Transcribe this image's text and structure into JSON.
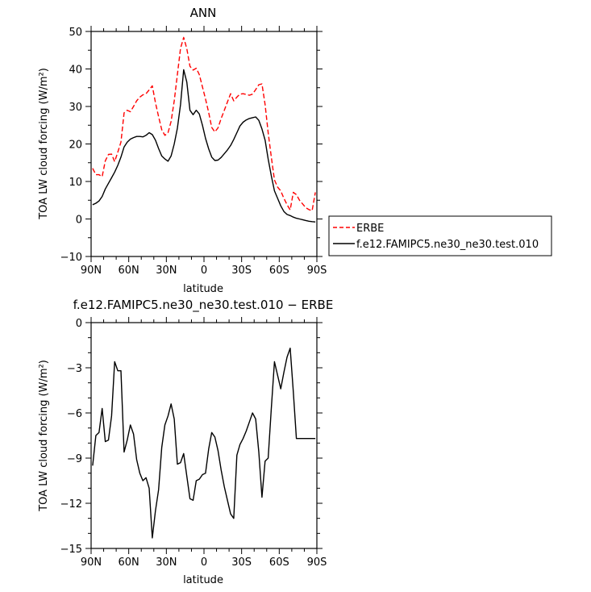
{
  "chart_data": [
    {
      "type": "line",
      "title": "ANN",
      "xlabel": "latitude",
      "ylabel": "TOA LW cloud forcing (W/m²)",
      "xlim": [
        90,
        -90
      ],
      "ylim": [
        -10,
        50
      ],
      "x_tick_values": [
        90,
        60,
        30,
        0,
        -30,
        -60,
        -90
      ],
      "x_tick_labels": [
        "90N",
        "60N",
        "30N",
        "0",
        "30S",
        "60S",
        "90S"
      ],
      "y_tick_values": [
        -10,
        0,
        10,
        20,
        30,
        40,
        50
      ],
      "y_tick_labels": [
        "−10",
        "0",
        "10",
        "20",
        "30",
        "40",
        "50"
      ],
      "legend_position": "right",
      "series": [
        {
          "name": "ERBE",
          "color": "#ff0000",
          "style": "dashed",
          "x": [
            88.8,
            86.2,
            83.7,
            81.2,
            78.7,
            76.2,
            73.7,
            71.2,
            68.7,
            66.2,
            63.7,
            61.2,
            58.7,
            56.2,
            53.7,
            51.2,
            48.7,
            46.2,
            43.7,
            41.2,
            38.7,
            36.2,
            33.7,
            31.2,
            28.7,
            26.2,
            23.7,
            21.2,
            18.7,
            16.2,
            13.7,
            11.2,
            8.7,
            6.2,
            3.7,
            1.2,
            -1.2,
            -3.7,
            -6.2,
            -8.7,
            -11.2,
            -13.7,
            -16.2,
            -18.7,
            -21.2,
            -23.7,
            -26.2,
            -28.7,
            -31.2,
            -33.7,
            -36.2,
            -38.7,
            -41.2,
            -43.7,
            -46.2,
            -48.7,
            -51.2,
            -53.7,
            -56.2,
            -58.7,
            -61.2,
            -63.7,
            -66.2,
            -68.7,
            -71.2,
            -73.7,
            -76.2,
            -78.7,
            -81.2,
            -83.7,
            -86.2,
            -88.8
          ],
          "y": [
            13.5,
            11.8,
            11.8,
            11.3,
            15.5,
            17.2,
            17.3,
            15.3,
            17.8,
            20.5,
            28.3,
            29.0,
            28.6,
            30.0,
            31.5,
            32.5,
            33.1,
            33.4,
            34.4,
            35.5,
            31.0,
            27.3,
            23.8,
            22.3,
            23.0,
            26.0,
            31.5,
            38.5,
            45.5,
            48.4,
            45.4,
            40.7,
            39.7,
            40.2,
            38.5,
            35.2,
            32.0,
            28.4,
            24.4,
            23.2,
            24.3,
            26.8,
            29.0,
            31.2,
            33.4,
            31.5,
            32.5,
            33.3,
            33.4,
            33.2,
            33.0,
            33.3,
            34.5,
            35.8,
            36.0,
            30.5,
            23.0,
            16.5,
            10.4,
            8.5,
            7.5,
            5.5,
            3.8,
            2.4,
            7.1,
            6.5,
            5.0,
            4.0,
            3.0,
            2.5,
            2.2,
            7.1
          ]
        },
        {
          "name": "f.e12.FAMIPC5.ne30_ne30.test.010",
          "color": "#000000",
          "style": "solid",
          "x": [
            88.8,
            86.2,
            83.7,
            81.2,
            78.7,
            76.2,
            73.7,
            71.2,
            68.7,
            66.2,
            63.7,
            61.2,
            58.7,
            56.2,
            53.7,
            51.2,
            48.7,
            46.2,
            43.7,
            41.2,
            38.7,
            36.2,
            33.7,
            31.2,
            28.7,
            26.2,
            23.7,
            21.2,
            18.7,
            16.2,
            13.7,
            11.2,
            8.7,
            6.2,
            3.7,
            1.2,
            -1.2,
            -3.7,
            -6.2,
            -8.7,
            -11.2,
            -13.7,
            -16.2,
            -18.7,
            -21.2,
            -23.7,
            -26.2,
            -28.7,
            -31.2,
            -33.7,
            -36.2,
            -38.7,
            -41.2,
            -43.7,
            -46.2,
            -48.7,
            -51.2,
            -53.7,
            -56.2,
            -58.7,
            -61.2,
            -63.7,
            -66.2,
            -68.7,
            -71.2,
            -73.7,
            -76.2,
            -78.7,
            -81.2,
            -83.7,
            -86.2,
            -88.8
          ],
          "y": [
            3.8,
            4.2,
            4.8,
            6.0,
            8.0,
            9.5,
            11.0,
            12.5,
            14.3,
            16.5,
            19.2,
            20.5,
            21.3,
            21.7,
            22.0,
            22.0,
            21.9,
            22.3,
            23.0,
            22.5,
            21.0,
            18.8,
            16.8,
            16.0,
            15.4,
            16.8,
            20.0,
            24.2,
            30.5,
            39.8,
            36.5,
            29.0,
            27.8,
            29.0,
            28.0,
            25.0,
            21.5,
            18.7,
            16.5,
            15.6,
            15.7,
            16.4,
            17.4,
            18.4,
            19.6,
            21.2,
            23.0,
            24.8,
            25.8,
            26.4,
            26.8,
            27.0,
            27.2,
            26.3,
            24.0,
            21.0,
            16.0,
            11.5,
            7.5,
            5.5,
            3.5,
            2.0,
            1.2,
            0.9,
            0.5,
            0.2,
            0.0,
            -0.2,
            -0.4,
            -0.6,
            -0.7,
            -0.8
          ]
        }
      ]
    },
    {
      "type": "line",
      "title": "f.e12.FAMIPC5.ne30_ne30.test.010 − ERBE",
      "xlabel": "latitude",
      "ylabel": "TOA LW cloud forcing (W/m²)",
      "xlim": [
        90,
        -90
      ],
      "ylim": [
        -15,
        0
      ],
      "x_tick_values": [
        90,
        60,
        30,
        0,
        -30,
        -60,
        -90
      ],
      "x_tick_labels": [
        "90N",
        "60N",
        "30N",
        "0",
        "30S",
        "60S",
        "90S"
      ],
      "y_tick_values": [
        -15,
        -12,
        -9,
        -6,
        -3,
        0
      ],
      "y_tick_labels": [
        "−15",
        "−12",
        "−9",
        "−6",
        "−3",
        "0"
      ],
      "series": [
        {
          "color": "#000000",
          "style": "solid",
          "x": [
            88.8,
            86.2,
            83.7,
            81.2,
            78.7,
            76.2,
            73.7,
            71.2,
            68.7,
            66.2,
            63.7,
            61.2,
            58.7,
            56.2,
            53.7,
            51.2,
            48.7,
            46.2,
            43.7,
            41.2,
            38.7,
            36.2,
            33.7,
            31.2,
            28.7,
            26.2,
            23.7,
            21.2,
            18.7,
            16.2,
            13.7,
            11.2,
            8.7,
            6.2,
            3.7,
            1.2,
            -1.2,
            -3.7,
            -6.2,
            -8.7,
            -11.2,
            -13.7,
            -16.2,
            -18.7,
            -21.2,
            -23.7,
            -26.2,
            -28.7,
            -31.2,
            -33.7,
            -36.2,
            -38.7,
            -41.2,
            -43.7,
            -46.2,
            -48.7,
            -51.2,
            -53.7,
            -56.2,
            -58.7,
            -61.2,
            -63.7,
            -66.2,
            -68.7,
            -71.2,
            -73.7,
            -76.2,
            -78.7,
            -81.2,
            -83.7,
            -86.2,
            -88.8
          ],
          "y": [
            -9.5,
            -7.5,
            -7.3,
            -5.7,
            -7.9,
            -7.8,
            -6.2,
            -2.6,
            -3.2,
            -3.2,
            -8.6,
            -7.8,
            -6.8,
            -7.4,
            -9.1,
            -10.0,
            -10.5,
            -10.3,
            -11.0,
            -14.3,
            -12.5,
            -11.1,
            -8.3,
            -6.8,
            -6.2,
            -5.4,
            -6.4,
            -9.4,
            -9.3,
            -8.7,
            -10.2,
            -11.7,
            -11.8,
            -10.5,
            -10.4,
            -10.1,
            -10.0,
            -8.4,
            -7.3,
            -7.6,
            -8.5,
            -9.8,
            -10.9,
            -11.8,
            -12.7,
            -13.0,
            -8.8,
            -8.1,
            -7.7,
            -7.2,
            -6.6,
            -6.0,
            -6.4,
            -8.6,
            -11.6,
            -9.2,
            -9.0,
            -5.7,
            -2.6,
            -3.5,
            -4.4,
            -3.3,
            -2.3,
            -1.7,
            -4.6,
            -7.7,
            -7.7,
            -7.7,
            -7.7,
            -7.7,
            -7.7,
            -7.7
          ]
        }
      ]
    }
  ]
}
